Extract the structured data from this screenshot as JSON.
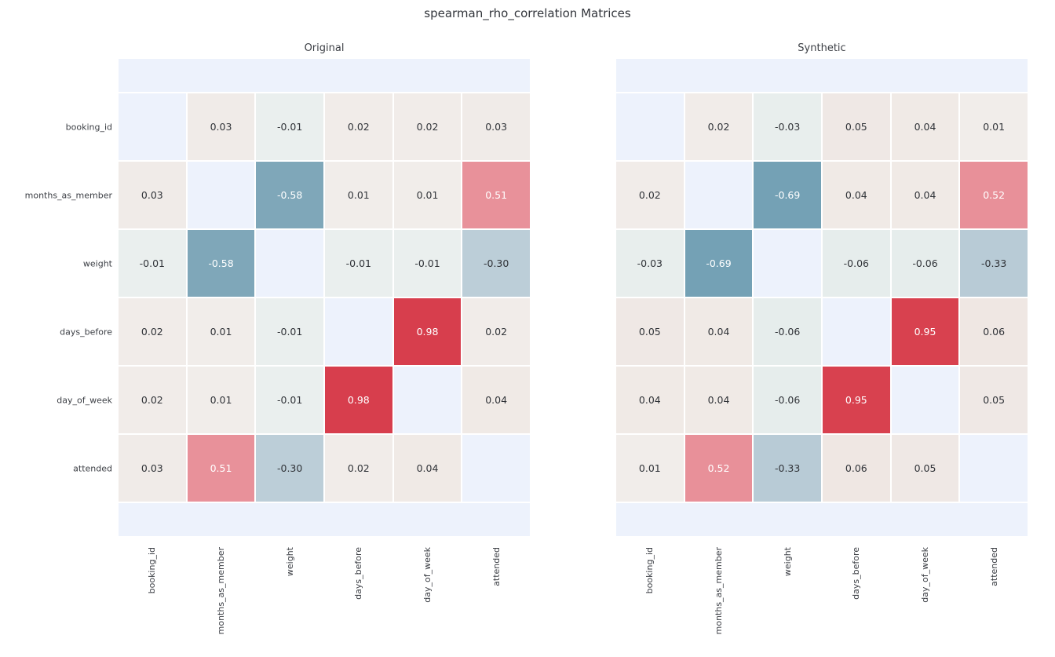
{
  "title": "spearman_rho_correlation Matrices",
  "colors": {
    "background": "#ffffff",
    "blank_cell": "#edf2fc",
    "grid_gap": "#ffffff",
    "cell_text_dark": "#303338",
    "cell_text_light": "#ffffff",
    "tick_label": "#3b3e44",
    "title_text": "#32353b"
  },
  "colorscale": [
    [
      -1.0,
      "#5f97ae"
    ],
    [
      -0.69,
      "#74a1b5"
    ],
    [
      -0.58,
      "#7fa7b9"
    ],
    [
      -0.33,
      "#b8cbd6"
    ],
    [
      -0.3,
      "#bcced8"
    ],
    [
      -0.06,
      "#e6edec"
    ],
    [
      -0.01,
      "#eaefee"
    ],
    [
      0.0,
      "#eef0ef"
    ],
    [
      0.01,
      "#f1edea"
    ],
    [
      0.03,
      "#f0ebe8"
    ],
    [
      0.06,
      "#efe7e3"
    ],
    [
      0.51,
      "#e8919a"
    ],
    [
      0.52,
      "#e89099"
    ],
    [
      0.95,
      "#d8414f"
    ],
    [
      0.98,
      "#d73e4d"
    ],
    [
      1.0,
      "#d63c4b"
    ]
  ],
  "white_text_threshold": 0.45,
  "chart_data": [
    {
      "type": "heatmap",
      "title": "Original",
      "categories": [
        "booking_id",
        "months_as_member",
        "weight",
        "days_before",
        "day_of_week",
        "attended"
      ],
      "matrix": [
        [
          null,
          0.03,
          -0.01,
          0.02,
          0.02,
          0.03
        ],
        [
          0.03,
          null,
          -0.58,
          0.01,
          0.01,
          0.51
        ],
        [
          -0.01,
          -0.58,
          null,
          -0.01,
          -0.01,
          -0.3
        ],
        [
          0.02,
          0.01,
          -0.01,
          null,
          0.98,
          0.02
        ],
        [
          0.02,
          0.01,
          -0.01,
          0.98,
          null,
          0.04
        ],
        [
          0.03,
          0.51,
          -0.3,
          0.02,
          0.04,
          null
        ]
      ],
      "value_range": [
        -1,
        1
      ],
      "show_row_labels": true
    },
    {
      "type": "heatmap",
      "title": "Synthetic",
      "categories": [
        "booking_id",
        "months_as_member",
        "weight",
        "days_before",
        "day_of_week",
        "attended"
      ],
      "matrix": [
        [
          null,
          0.02,
          -0.03,
          0.05,
          0.04,
          0.01
        ],
        [
          0.02,
          null,
          -0.69,
          0.04,
          0.04,
          0.52
        ],
        [
          -0.03,
          -0.69,
          null,
          -0.06,
          -0.06,
          -0.33
        ],
        [
          0.05,
          0.04,
          -0.06,
          null,
          0.95,
          0.06
        ],
        [
          0.04,
          0.04,
          -0.06,
          0.95,
          null,
          0.05
        ],
        [
          0.01,
          0.52,
          -0.33,
          0.06,
          0.05,
          null
        ]
      ],
      "value_range": [
        -1,
        1
      ],
      "show_row_labels": false
    }
  ]
}
